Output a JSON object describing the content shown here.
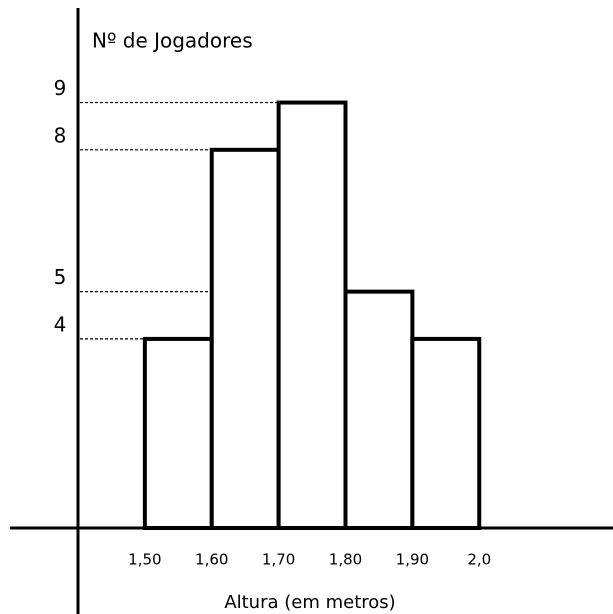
{
  "chart_data": {
    "type": "histogram",
    "title": "Nº de Jogadores",
    "x_label": "Altura (em metros)",
    "bins": [
      {
        "value": 1.5,
        "label": "1,50"
      },
      {
        "value": 1.6,
        "label": "1,60"
      },
      {
        "value": 1.7,
        "label": "1,70"
      },
      {
        "value": 1.8,
        "label": "1,80"
      },
      {
        "value": 1.9,
        "label": "1,90"
      },
      {
        "value": 2.0,
        "label": "2,0"
      }
    ],
    "values": [
      4,
      8,
      9,
      5,
      4
    ],
    "color": "#ffffff",
    "xlim": [
      1.4,
      2.2
    ],
    "ylim": [
      0,
      11
    ],
    "yticks": [
      4,
      5,
      8,
      9
    ]
  }
}
